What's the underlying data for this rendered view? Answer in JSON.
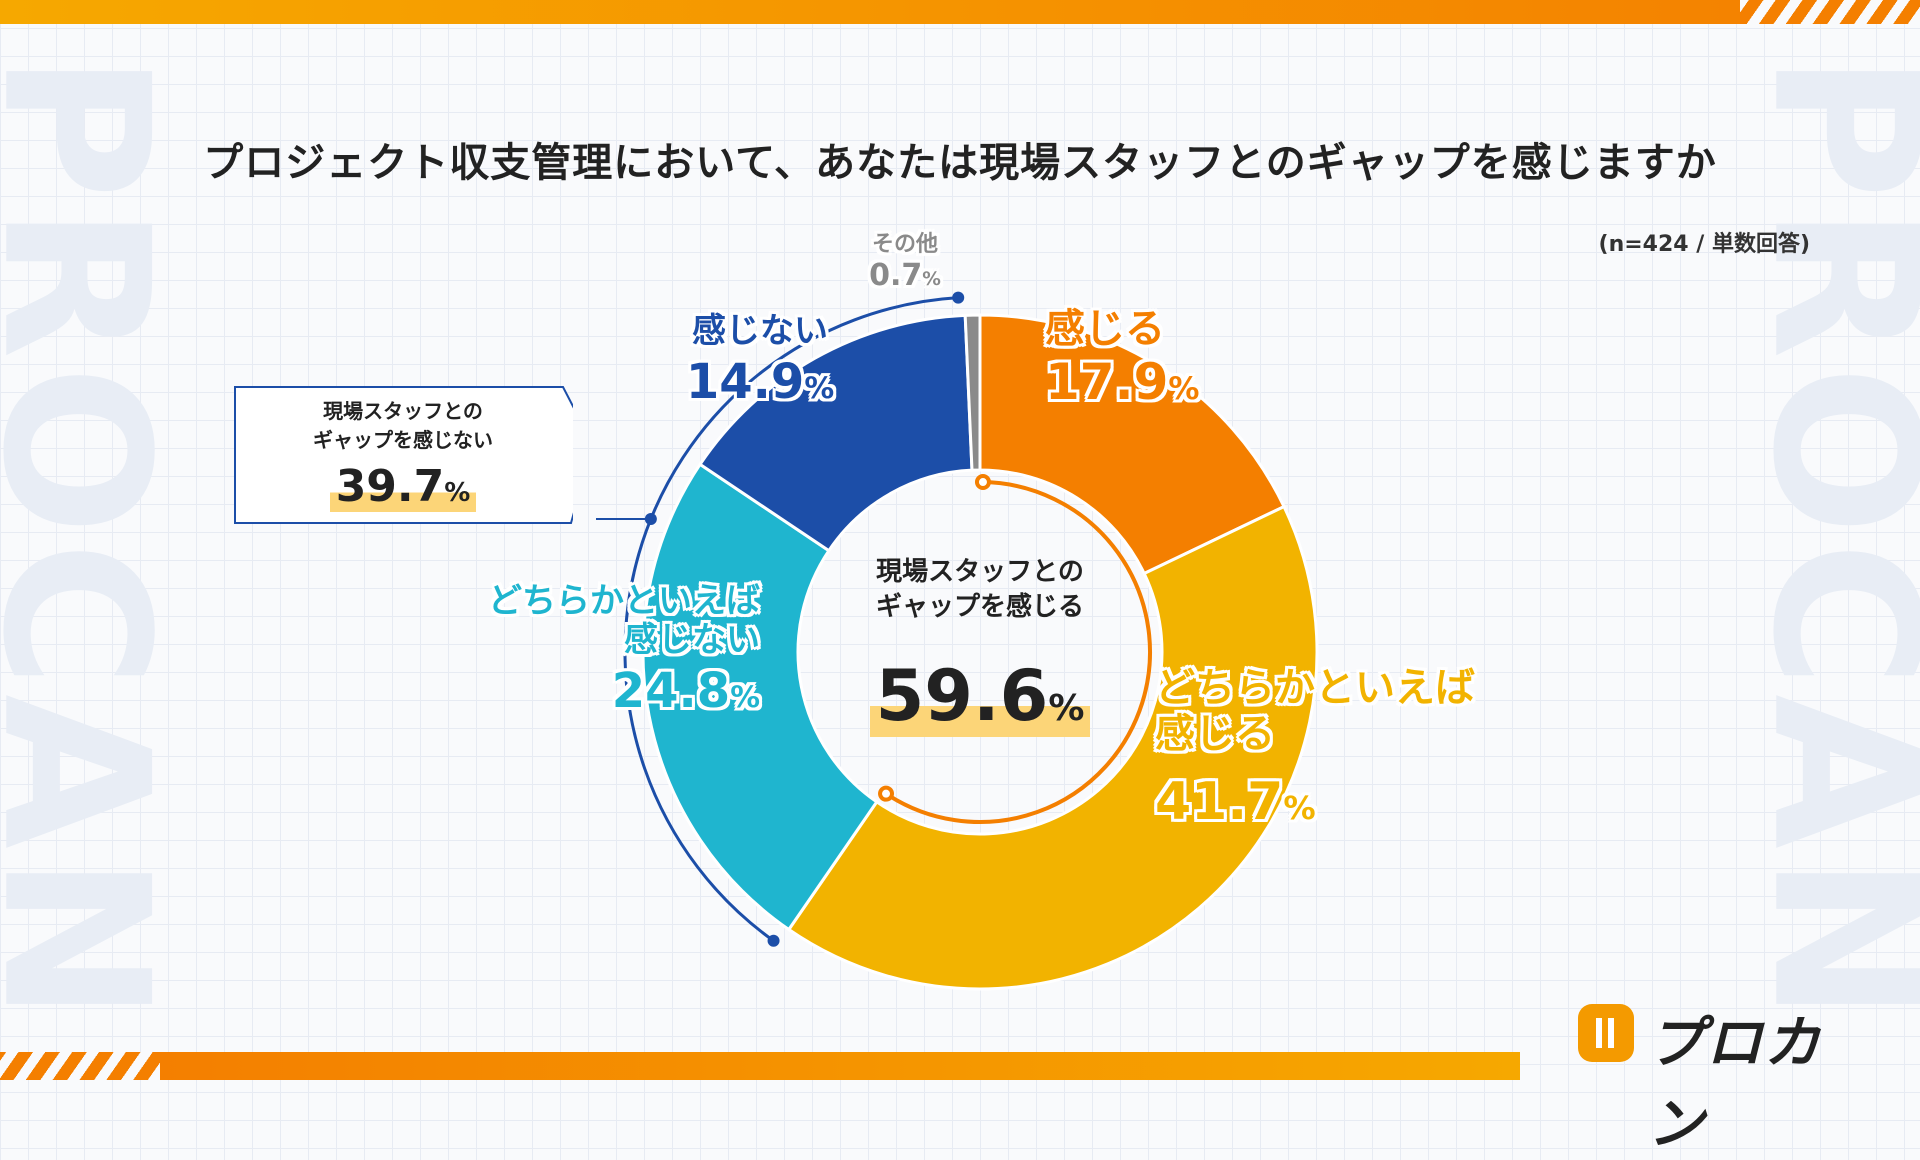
{
  "brand": {
    "watermark": "PROCAN",
    "logo_text": "プロカン",
    "colors": {
      "orange": "#f47f00",
      "yellow": "#f2b300",
      "cyan": "#1fb5cf",
      "navy": "#1c4ea8",
      "gray": "#8a8a8a"
    }
  },
  "title": "プロジェクト収支管理において、あなたは現場スタッフとのギャップを感じますか",
  "sample": "(n=424 / 単数回答)",
  "chart_data": {
    "type": "pie",
    "title": "プロジェクト収支管理において、あなたは現場スタッフとのギャップを感じますか",
    "unit": "%",
    "slices": [
      {
        "label": "感じる",
        "value": 17.9,
        "color": "#f47f00"
      },
      {
        "label": "どちらかといえば感じる",
        "value": 41.7,
        "color": "#f2b300"
      },
      {
        "label": "どちらかといえば感じない",
        "value": 24.8,
        "color": "#1fb5cf"
      },
      {
        "label": "感じない",
        "value": 14.9,
        "color": "#1c4ea8"
      },
      {
        "label": "その他",
        "value": 0.7,
        "color": "#8a8a8a"
      }
    ],
    "groups": [
      {
        "label": "現場スタッフとのギャップを感じる",
        "value": 59.6
      },
      {
        "label": "現場スタッフとのギャップを感じない",
        "value": 39.7
      }
    ]
  },
  "labels": {
    "agree": {
      "name": "感じる",
      "value": "17.9"
    },
    "some_agree": {
      "name_line1": "どちらかといえば",
      "name_line2": "感じる",
      "value": "41.7"
    },
    "some_disagree": {
      "name_line1": "どちらかといえば",
      "name_line2": "感じない",
      "value": "24.8"
    },
    "disagree": {
      "name": "感じない",
      "value": "14.9"
    },
    "other": {
      "name": "その他",
      "value": "0.7"
    },
    "pct_sign": "%"
  },
  "center": {
    "line1": "現場スタッフとの",
    "line2": "ギャップを感じる",
    "value": "59.6",
    "pct_sign": "%"
  },
  "callout": {
    "line1": "現場スタッフとの",
    "line2": "ギャップを感じない",
    "value": "39.7",
    "pct_sign": "%"
  }
}
